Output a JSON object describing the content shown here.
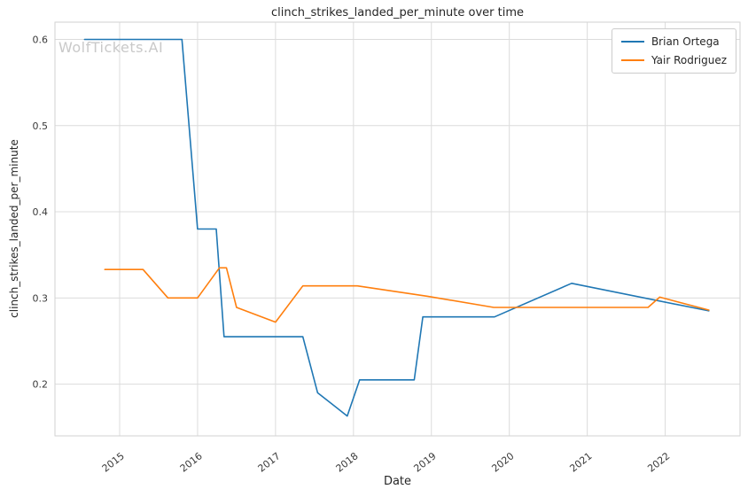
{
  "watermark": "WolfTickets.AI",
  "chart_data": {
    "type": "line",
    "title": "clinch_strikes_landed_per_minute over time",
    "xlabel": "Date",
    "ylabel": "clinch_strikes_landed_per_minute",
    "grid": true,
    "legend_position": "upper right",
    "x_ticks": [
      2015,
      2016,
      2017,
      2018,
      2019,
      2020,
      2021,
      2022
    ],
    "y_ticks": [
      0.2,
      0.3,
      0.4,
      0.5,
      0.6
    ],
    "xlim": [
      2014.17,
      2022.96
    ],
    "ylim": [
      0.14,
      0.62
    ],
    "series": [
      {
        "name": "Brian Ortega",
        "color": "#1f77b4",
        "points": [
          [
            2014.55,
            0.6
          ],
          [
            2015.8,
            0.6
          ],
          [
            2016.0,
            0.38
          ],
          [
            2016.24,
            0.38
          ],
          [
            2016.34,
            0.255
          ],
          [
            2017.35,
            0.255
          ],
          [
            2017.54,
            0.19
          ],
          [
            2017.92,
            0.163
          ],
          [
            2018.08,
            0.205
          ],
          [
            2018.78,
            0.205
          ],
          [
            2018.89,
            0.278
          ],
          [
            2019.81,
            0.278
          ],
          [
            2020.8,
            0.317
          ],
          [
            2022.56,
            0.285
          ]
        ]
      },
      {
        "name": "Yair Rodriguez",
        "color": "#ff7f0e",
        "points": [
          [
            2014.81,
            0.333
          ],
          [
            2015.3,
            0.333
          ],
          [
            2015.62,
            0.3
          ],
          [
            2016.0,
            0.3
          ],
          [
            2016.28,
            0.335
          ],
          [
            2016.37,
            0.335
          ],
          [
            2016.5,
            0.289
          ],
          [
            2017.0,
            0.272
          ],
          [
            2017.35,
            0.314
          ],
          [
            2018.05,
            0.314
          ],
          [
            2018.95,
            0.302
          ],
          [
            2019.8,
            0.289
          ],
          [
            2021.78,
            0.289
          ],
          [
            2021.93,
            0.301
          ],
          [
            2022.56,
            0.286
          ]
        ]
      }
    ]
  }
}
